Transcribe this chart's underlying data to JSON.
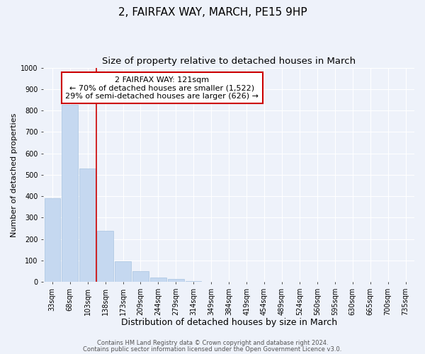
{
  "title": "2, FAIRFAX WAY, MARCH, PE15 9HP",
  "subtitle": "Size of property relative to detached houses in March",
  "xlabel": "Distribution of detached houses by size in March",
  "ylabel": "Number of detached properties",
  "bar_labels": [
    "33sqm",
    "68sqm",
    "103sqm",
    "138sqm",
    "173sqm",
    "209sqm",
    "244sqm",
    "279sqm",
    "314sqm",
    "349sqm",
    "384sqm",
    "419sqm",
    "454sqm",
    "489sqm",
    "524sqm",
    "560sqm",
    "595sqm",
    "630sqm",
    "665sqm",
    "700sqm",
    "735sqm"
  ],
  "bar_values": [
    390,
    828,
    530,
    240,
    97,
    52,
    22,
    15,
    5,
    0,
    0,
    0,
    0,
    0,
    0,
    0,
    0,
    0,
    0,
    0,
    0
  ],
  "bar_color": "#c5d8f0",
  "bar_edgecolor": "#a8c4e0",
  "vline_color": "#cc0000",
  "ylim": [
    0,
    1000
  ],
  "yticks": [
    0,
    100,
    200,
    300,
    400,
    500,
    600,
    700,
    800,
    900,
    1000
  ],
  "annotation_text_line1": "2 FAIRFAX WAY: 121sqm",
  "annotation_text_line2": "← 70% of detached houses are smaller (1,522)",
  "annotation_text_line3": "29% of semi-detached houses are larger (626) →",
  "annotation_box_edgecolor": "#cc0000",
  "footer_line1": "Contains HM Land Registry data © Crown copyright and database right 2024.",
  "footer_line2": "Contains public sector information licensed under the Open Government Licence v3.0.",
  "background_color": "#eef2fa",
  "plot_bg_color": "#eef2fa",
  "grid_color": "#ffffff",
  "title_fontsize": 11,
  "subtitle_fontsize": 9.5,
  "xlabel_fontsize": 9,
  "ylabel_fontsize": 8,
  "tick_fontsize": 7,
  "annotation_fontsize": 8,
  "footer_fontsize": 6
}
